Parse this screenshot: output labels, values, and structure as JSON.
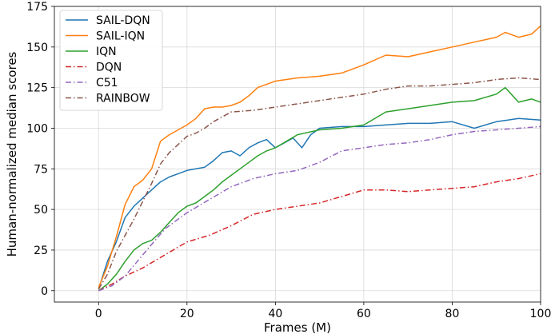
{
  "chart_data": {
    "type": "line",
    "title": "",
    "xlabel": "Frames (M)",
    "ylabel": "Human-normalized median scores",
    "xlim": [
      -10,
      100
    ],
    "ylim": [
      -7,
      175
    ],
    "xticks": [
      0,
      20,
      40,
      60,
      80,
      100
    ],
    "yticks": [
      0,
      25,
      50,
      75,
      100,
      125,
      150,
      175
    ],
    "xtick_labels": [
      "0",
      "20",
      "40",
      "60",
      "80",
      "100"
    ],
    "ytick_labels": [
      "0",
      "25",
      "50",
      "75",
      "100",
      "125",
      "150",
      "175"
    ],
    "grid": true,
    "legend_position": "top-left",
    "series": [
      {
        "name": "SAIL-DQN",
        "color": "#1f77b4",
        "dash": "solid",
        "x": [
          0,
          2,
          4,
          6,
          8,
          10,
          12,
          14,
          16,
          18,
          20,
          22,
          24,
          26,
          28,
          30,
          32,
          34,
          36,
          38,
          40,
          42,
          44,
          46,
          48,
          50,
          55,
          60,
          65,
          70,
          75,
          80,
          85,
          90,
          95,
          100
        ],
        "values": [
          1,
          18,
          30,
          45,
          52,
          57,
          62,
          67,
          70,
          72,
          74,
          75,
          76,
          80,
          85,
          86,
          83,
          88,
          91,
          93,
          88,
          91,
          94,
          88,
          96,
          100,
          101,
          101,
          102,
          103,
          103,
          104,
          100,
          104,
          106,
          105
        ]
      },
      {
        "name": "SAIL-IQN",
        "color": "#ff7f0e",
        "dash": "solid",
        "x": [
          0,
          2,
          4,
          6,
          8,
          10,
          12,
          14,
          16,
          18,
          20,
          22,
          24,
          26,
          28,
          30,
          32,
          34,
          36,
          38,
          40,
          45,
          50,
          55,
          60,
          65,
          70,
          75,
          80,
          85,
          90,
          92,
          95,
          98,
          100
        ],
        "values": [
          2,
          15,
          33,
          53,
          64,
          68,
          75,
          92,
          96,
          99,
          102,
          106,
          112,
          113,
          113,
          114,
          116,
          120,
          125,
          127,
          129,
          131,
          132,
          134,
          139,
          145,
          144,
          147,
          150,
          153,
          156,
          159,
          156,
          158,
          163
        ]
      },
      {
        "name": "IQN",
        "color": "#2ca02c",
        "dash": "solid",
        "x": [
          0,
          2,
          4,
          6,
          8,
          10,
          12,
          14,
          16,
          18,
          20,
          22,
          24,
          26,
          28,
          30,
          32,
          34,
          36,
          38,
          40,
          45,
          50,
          55,
          60,
          65,
          70,
          75,
          80,
          85,
          90,
          92,
          95,
          98,
          100
        ],
        "values": [
          0,
          4,
          10,
          18,
          25,
          29,
          31,
          36,
          42,
          48,
          52,
          54,
          58,
          62,
          67,
          71,
          75,
          79,
          83,
          86,
          88,
          96,
          99,
          100,
          102,
          110,
          112,
          114,
          116,
          117,
          121,
          125,
          116,
          118,
          116
        ]
      },
      {
        "name": "DQN",
        "color": "#d62728",
        "dash": "dashdot",
        "x": [
          0,
          3,
          6,
          10,
          15,
          20,
          25,
          30,
          35,
          40,
          45,
          50,
          55,
          60,
          65,
          70,
          75,
          80,
          85,
          90,
          95,
          100
        ],
        "values": [
          0,
          4,
          9,
          14,
          22,
          30,
          34,
          40,
          47,
          50,
          52,
          54,
          58,
          62,
          62,
          61,
          62,
          63,
          64,
          67,
          69,
          72
        ]
      },
      {
        "name": "C51",
        "color": "#9467bd",
        "dash": "dashdot",
        "x": [
          0,
          3,
          6,
          10,
          15,
          20,
          25,
          30,
          35,
          40,
          45,
          50,
          55,
          60,
          65,
          70,
          75,
          80,
          85,
          90,
          95,
          100
        ],
        "values": [
          0,
          3,
          9,
          22,
          38,
          48,
          56,
          64,
          69,
          72,
          74,
          79,
          86,
          88,
          90,
          91,
          93,
          96,
          98,
          99,
          100,
          101
        ]
      },
      {
        "name": "RAINBOW",
        "color": "#8c564b",
        "dash": "dashdot",
        "x": [
          0,
          2,
          4,
          6,
          8,
          10,
          12,
          14,
          16,
          18,
          20,
          22,
          24,
          26,
          28,
          30,
          35,
          40,
          45,
          50,
          55,
          60,
          65,
          70,
          75,
          80,
          85,
          90,
          95,
          100
        ],
        "values": [
          1,
          10,
          24,
          34,
          44,
          55,
          66,
          78,
          85,
          90,
          95,
          97,
          100,
          104,
          107,
          110,
          111,
          113,
          115,
          117,
          119,
          121,
          124,
          126,
          126,
          127,
          128,
          130,
          131,
          130
        ]
      }
    ]
  }
}
